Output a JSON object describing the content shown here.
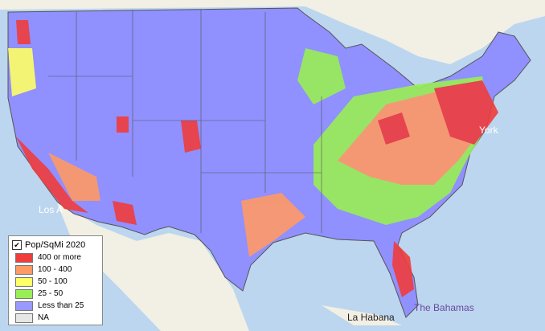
{
  "legend": {
    "title": "Pop/SqMi 2020",
    "checked": true,
    "items": [
      {
        "label": "400 or more",
        "color": "#f03c3c"
      },
      {
        "label": "100 - 400",
        "color": "#ff9966"
      },
      {
        "label": "50 - 100",
        "color": "#ffff66"
      },
      {
        "label": "25 - 50",
        "color": "#99ee55"
      },
      {
        "label": "Less than 25",
        "color": "#9999ff"
      },
      {
        "label": "NA",
        "color": "#e6e6e6"
      }
    ]
  },
  "map_labels": [
    "York",
    "Los A",
    "La Habana",
    "The Bahamas"
  ]
}
